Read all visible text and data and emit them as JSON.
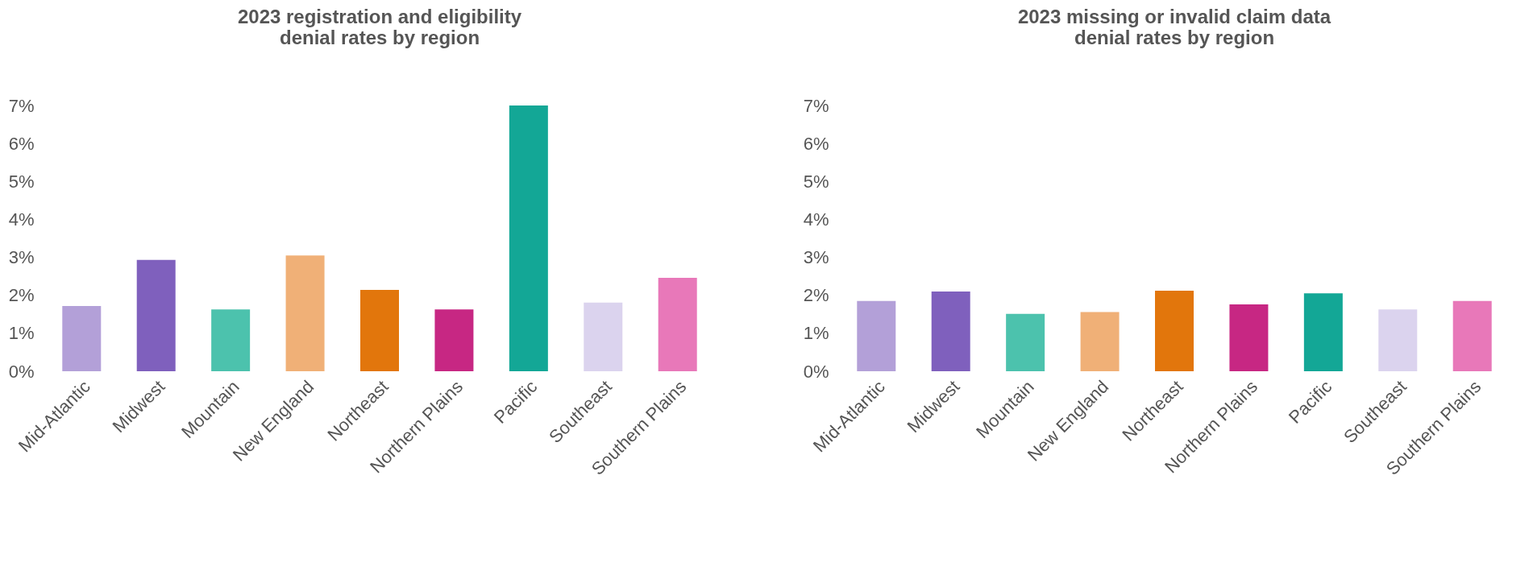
{
  "chart_data": [
    {
      "type": "bar",
      "title": "2023 registration and eligibility\ndenial rates by region",
      "categories": [
        "Mid-Atlantic",
        "Midwest",
        "Mountain",
        "New England",
        "Northeast",
        "Northern Plains",
        "Pacific",
        "Southeast",
        "Southern Plains"
      ],
      "values": [
        1.72,
        2.93,
        1.63,
        3.05,
        2.14,
        1.63,
        7.0,
        1.81,
        2.46
      ],
      "colors": [
        "#b3a0d8",
        "#7f60bd",
        "#4cc2ad",
        "#f0b077",
        "#e2760c",
        "#c72783",
        "#13a796",
        "#dbd3ee",
        "#e878b9"
      ],
      "ylim": [
        0,
        7
      ],
      "yticks": [
        {
          "value": 0,
          "label": "0%"
        },
        {
          "value": 1,
          "label": "1%"
        },
        {
          "value": 2,
          "label": "2%"
        },
        {
          "value": 3,
          "label": "3%"
        },
        {
          "value": 4,
          "label": "4%"
        },
        {
          "value": 5,
          "label": "5%"
        },
        {
          "value": 6,
          "label": "6%"
        },
        {
          "value": 7,
          "label": "7%"
        }
      ],
      "grid": false
    },
    {
      "type": "bar",
      "title": "2023 missing or invalid claim data\ndenial rates by region",
      "categories": [
        "Mid-Atlantic",
        "Midwest",
        "Mountain",
        "New England",
        "Northeast",
        "Northern Plains",
        "Pacific",
        "Southeast",
        "Southern Plains"
      ],
      "values": [
        1.85,
        2.1,
        1.51,
        1.56,
        2.12,
        1.76,
        2.05,
        1.63,
        1.85
      ],
      "colors": [
        "#b3a0d8",
        "#7f60bd",
        "#4cc2ad",
        "#f0b077",
        "#e2760c",
        "#c72783",
        "#13a796",
        "#dbd3ee",
        "#e878b9"
      ],
      "ylim": [
        0,
        7
      ],
      "yticks": [
        {
          "value": 0,
          "label": "0%"
        },
        {
          "value": 1,
          "label": "1%"
        },
        {
          "value": 2,
          "label": "2%"
        },
        {
          "value": 3,
          "label": "3%"
        },
        {
          "value": 4,
          "label": "4%"
        },
        {
          "value": 5,
          "label": "5%"
        },
        {
          "value": 6,
          "label": "6%"
        },
        {
          "value": 7,
          "label": "7%"
        }
      ],
      "grid": false
    }
  ]
}
